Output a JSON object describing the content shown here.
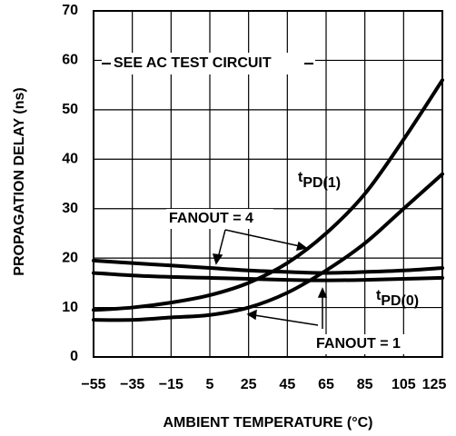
{
  "chart_data": {
    "type": "line",
    "xlabel": "AMBIENT TEMPERATURE (°C)",
    "ylabel": "PROPAGATION DELAY (ns)",
    "x": [
      -55,
      -35,
      -15,
      5,
      25,
      45,
      65,
      85,
      105,
      125
    ],
    "series": [
      {
        "color": "#000000",
        "values": [
          9.5,
          10,
          11,
          12.5,
          15,
          19,
          25,
          33,
          44,
          56
        ]
      },
      {
        "color": "#000000",
        "values": [
          7.5,
          7.5,
          8,
          8.5,
          10,
          13,
          17.5,
          23,
          30,
          37
        ]
      },
      {
        "color": "#000000",
        "values": [
          19.5,
          19,
          18.5,
          18,
          17.5,
          17.2,
          17,
          17.2,
          17.5,
          18
        ]
      },
      {
        "color": "#000000",
        "values": [
          17,
          16.5,
          16.2,
          16,
          15.8,
          15.6,
          15.5,
          15.6,
          15.8,
          16
        ]
      }
    ],
    "xlim": [
      -55,
      125
    ],
    "xticks": [
      {
        "value": -55,
        "label": "−55"
      },
      {
        "value": -35,
        "label": "−35"
      },
      {
        "value": -15,
        "label": "−15"
      },
      5,
      25,
      45,
      65,
      85,
      105,
      125
    ],
    "ylim": [
      0,
      70
    ],
    "yticks": [
      0,
      10,
      20,
      30,
      40,
      50,
      60,
      70
    ],
    "grid": true,
    "annotations": [
      {
        "text": "SEE AC TEST CIRCUIT"
      },
      {
        "text": "FANOUT = 4"
      },
      {
        "text": "FANOUT = 1"
      },
      {
        "text": "t",
        "sub": "PD(1)"
      },
      {
        "text": "t",
        "sub": "PD(0)"
      }
    ]
  }
}
